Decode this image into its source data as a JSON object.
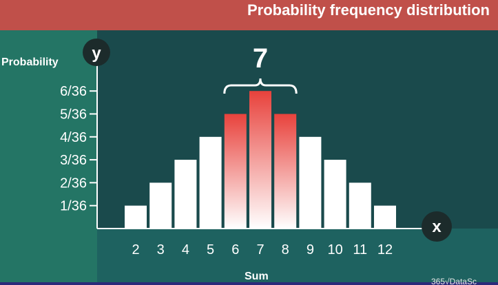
{
  "header": {
    "title": "Probability frequency distribution"
  },
  "watermark": "365√DataSc",
  "colors": {
    "bar_plain": "#ffffff",
    "bar_highlight": "#e8423c",
    "header_bg": "#c0504a",
    "panel_bg": "#247565",
    "plot_bg": "#1a4a4c"
  },
  "chart_data": {
    "type": "bar",
    "title": "Probability frequency distribution",
    "xlabel": "Sum",
    "ylabel": "Probability",
    "x_axis_symbol": "x",
    "y_axis_symbol": "y",
    "categories": [
      "2",
      "3",
      "4",
      "5",
      "6",
      "7",
      "8",
      "9",
      "10",
      "11",
      "12"
    ],
    "values": [
      1,
      2,
      3,
      4,
      5,
      6,
      5,
      4,
      3,
      2,
      1
    ],
    "value_unit": "/36",
    "y_ticks": [
      "1/36",
      "2/36",
      "3/36",
      "4/36",
      "5/36",
      "6/36"
    ],
    "ylim": [
      0,
      6
    ],
    "highlighted_categories": [
      "6",
      "7",
      "8"
    ],
    "annotation": {
      "text": "7",
      "spans": [
        "6",
        "8"
      ]
    },
    "grid": false
  }
}
